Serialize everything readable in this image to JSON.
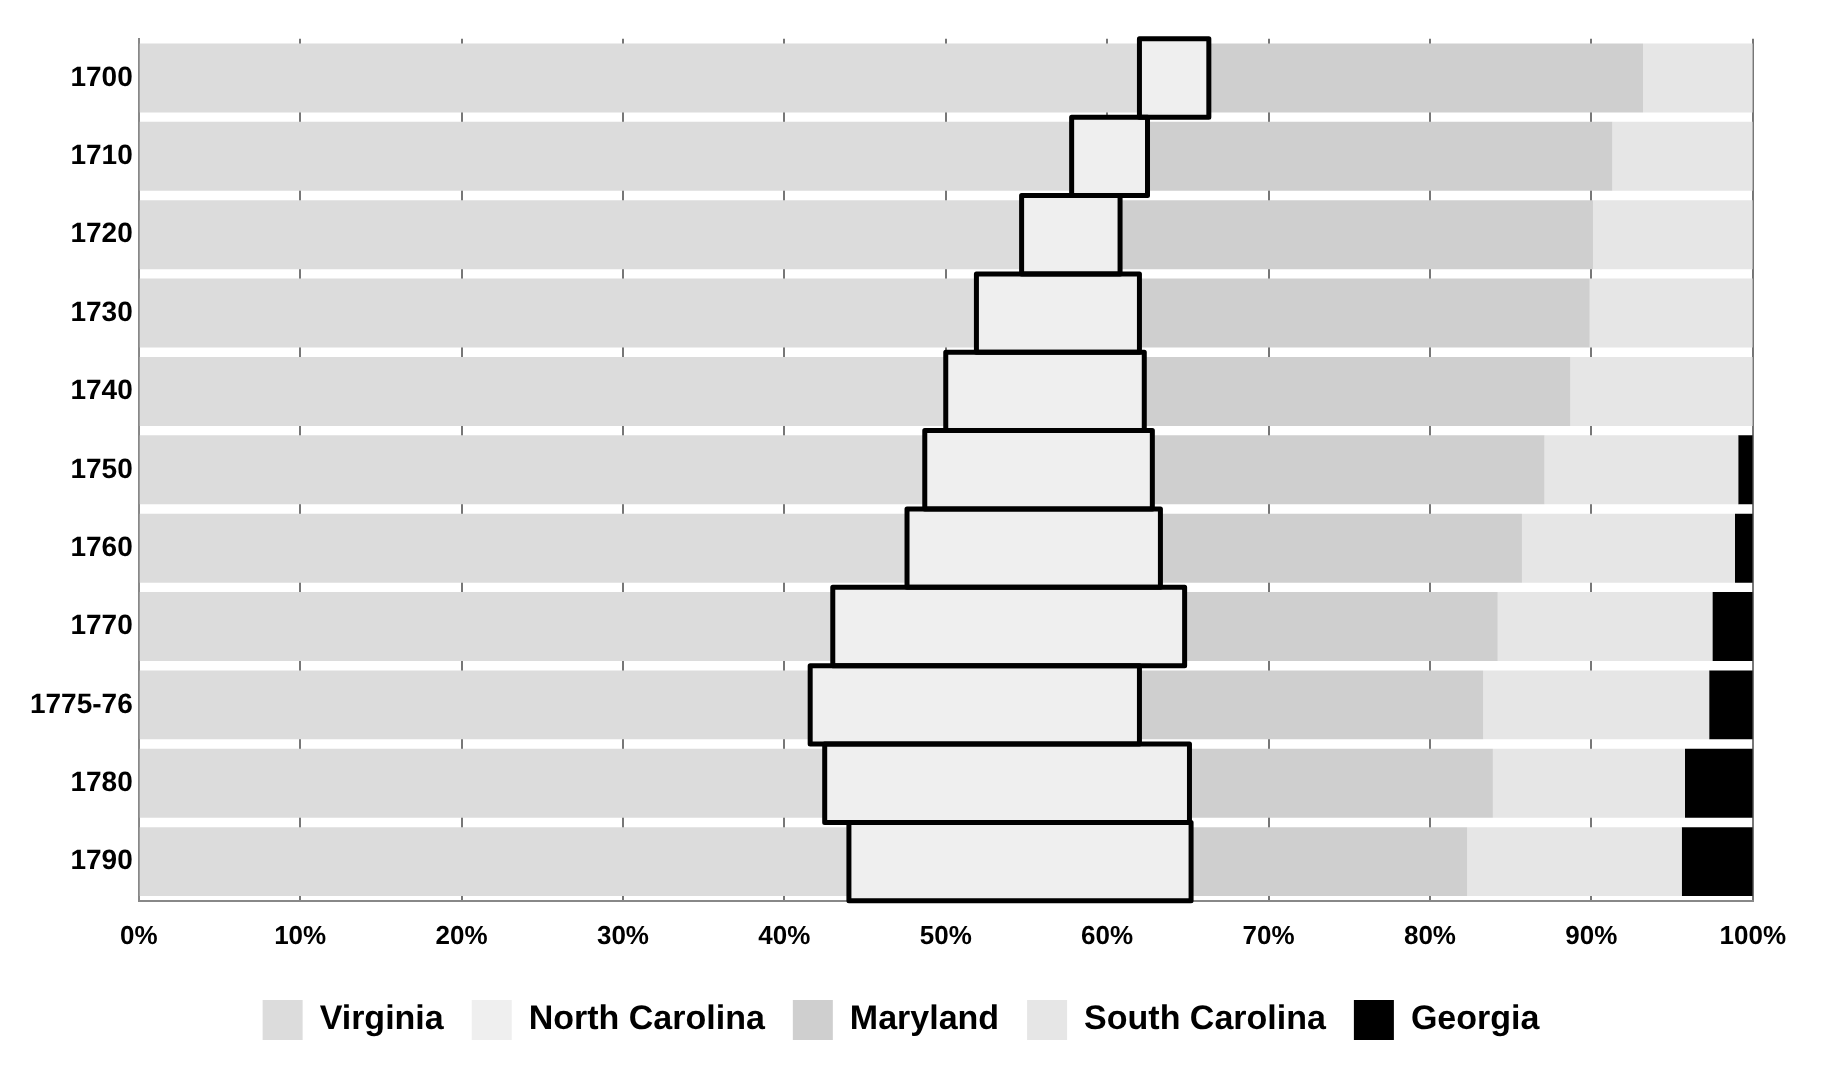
{
  "chart_data": {
    "type": "bar",
    "orientation": "horizontal",
    "stacked": true,
    "categories": [
      "1700",
      "1710",
      "1720",
      "1730",
      "1740",
      "1750",
      "1760",
      "1770",
      "1775-76",
      "1780",
      "1790"
    ],
    "series": [
      {
        "name": "Virginia",
        "color": "#dcdcdc",
        "values": [
          62.0,
          57.8,
          54.7,
          51.9,
          50.0,
          48.7,
          47.6,
          43.0,
          41.6,
          42.5,
          44.0
        ]
      },
      {
        "name": "North Carolina",
        "color": "#efefef",
        "values": [
          4.3,
          4.7,
          6.1,
          10.1,
          12.3,
          14.1,
          15.7,
          21.8,
          20.4,
          22.6,
          21.2
        ]
      },
      {
        "name": "Maryland",
        "color": "#cfcfcf",
        "values": [
          26.9,
          28.8,
          29.3,
          27.9,
          26.4,
          24.3,
          22.4,
          19.4,
          21.3,
          18.8,
          17.1
        ]
      },
      {
        "name": "South Carolina",
        "color": "#e6e6e6",
        "values": [
          6.8,
          8.7,
          9.9,
          10.1,
          11.3,
          12.0,
          13.2,
          13.3,
          14.0,
          11.9,
          13.3
        ]
      },
      {
        "name": "Georgia",
        "color": "#000000",
        "values": [
          0,
          0,
          0,
          0,
          0,
          0.9,
          1.1,
          2.5,
          2.7,
          4.2,
          4.4
        ]
      }
    ],
    "xlim": [
      0,
      100
    ],
    "xticks": [
      {
        "value": 0,
        "label": "0%"
      },
      {
        "value": 10,
        "label": "10%"
      },
      {
        "value": 20,
        "label": "20%"
      },
      {
        "value": 30,
        "label": "30%"
      },
      {
        "value": 40,
        "label": "40%"
      },
      {
        "value": 50,
        "label": "50%"
      },
      {
        "value": 60,
        "label": "60%"
      },
      {
        "value": 70,
        "label": "70%"
      },
      {
        "value": 80,
        "label": "80%"
      },
      {
        "value": 90,
        "label": "90%"
      },
      {
        "value": 100,
        "label": "100%"
      }
    ],
    "grid": "x",
    "legend": "bottom"
  }
}
